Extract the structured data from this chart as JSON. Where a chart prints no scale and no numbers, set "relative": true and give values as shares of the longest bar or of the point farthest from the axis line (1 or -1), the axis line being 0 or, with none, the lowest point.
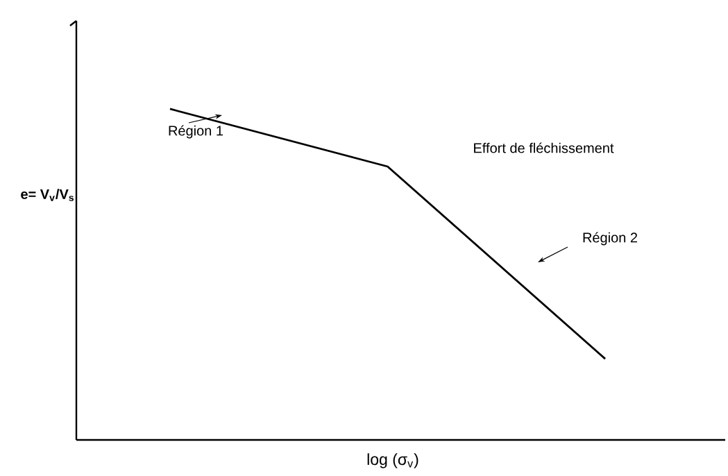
{
  "chart_data": {
    "type": "line",
    "relative": true,
    "xlabel": "log (σ$_{v}$)",
    "ylabel": "e= V$_{v}$/V$_{s}$",
    "categories": [
      null,
      null,
      null
    ],
    "series": [
      {
        "color": "#000000",
        "values": [
          1,
          0.826,
          0.245
        ]
      }
    ],
    "marker": "none",
    "line_style": "solid",
    "annotations": [
      "Région 1",
      "Effort de fléchissement",
      "Région 2"
    ]
  }
}
